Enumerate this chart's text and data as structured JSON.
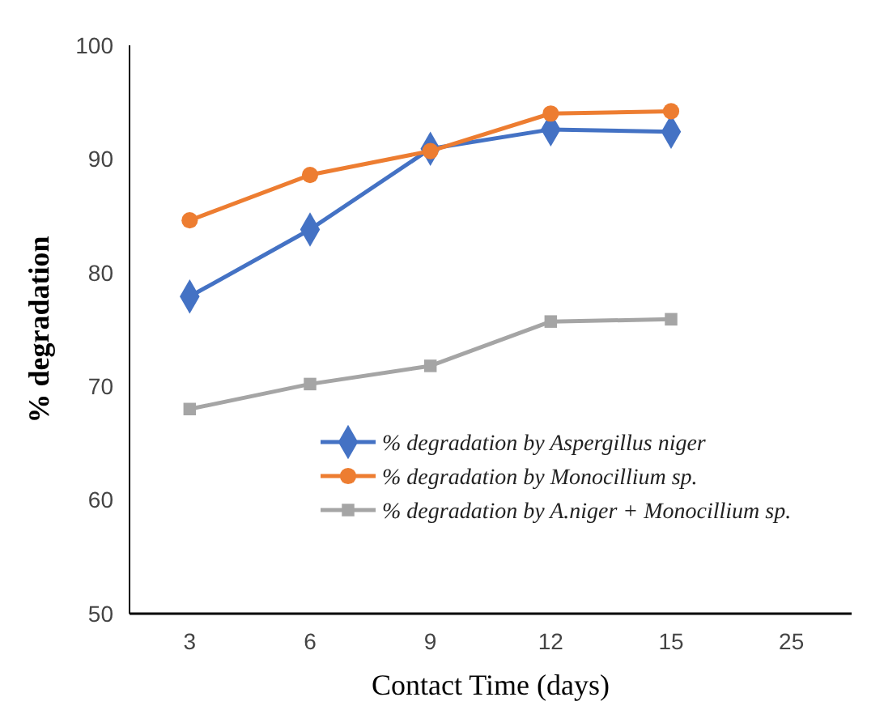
{
  "chart_data": {
    "type": "line",
    "xlabel": "Contact Time (days)",
    "ylabel": "% degradation",
    "categories": [
      "3",
      "6",
      "9",
      "12",
      "15",
      "25"
    ],
    "ylim": [
      50,
      100
    ],
    "yticks": [
      50,
      60,
      70,
      80,
      90,
      100
    ],
    "grid": false,
    "legend": "bottom right",
    "line_style": "solid",
    "series": [
      {
        "name": "% degradation by Aspergillus niger",
        "color": "#4472c4",
        "marker": "diamond",
        "values": [
          77.9,
          83.8,
          90.9,
          92.6,
          92.4,
          null
        ]
      },
      {
        "name": "% degradation by Monocillium sp.",
        "color": "#ed7d31",
        "marker": "circle",
        "values": [
          84.6,
          88.6,
          90.7,
          94,
          94.2,
          null
        ]
      },
      {
        "name": "% degradation by A.niger + Monocillium sp.",
        "color": "#a5a5a5",
        "marker": "square",
        "values": [
          68,
          70.2,
          71.8,
          75.7,
          75.9,
          null
        ]
      }
    ]
  }
}
